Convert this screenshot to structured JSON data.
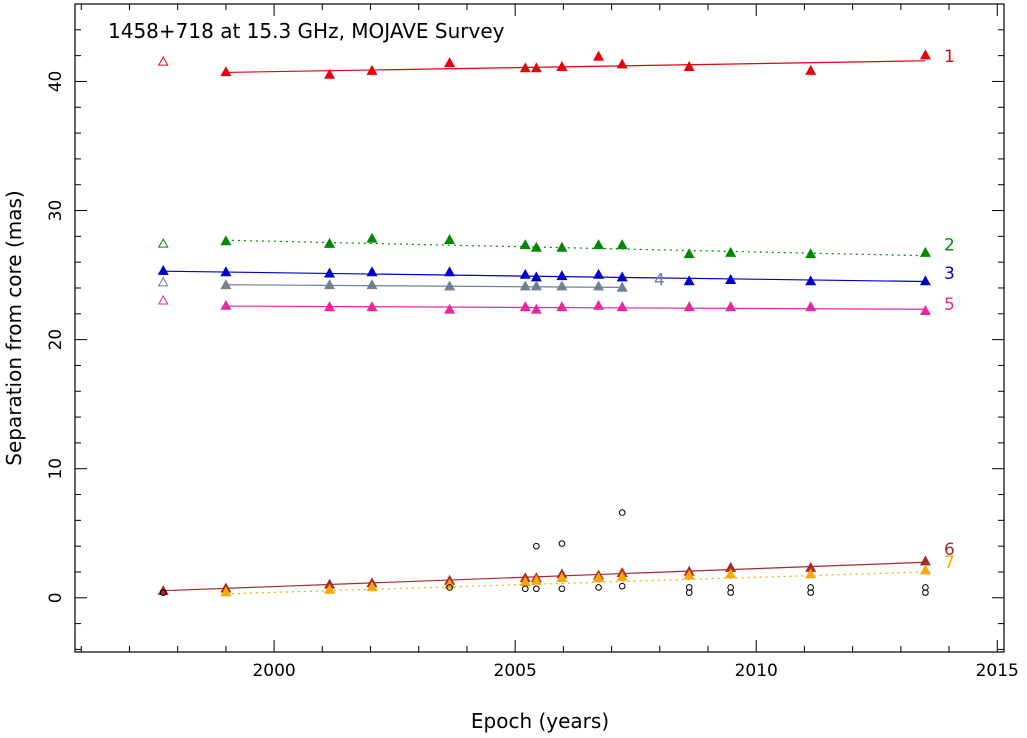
{
  "chart_data": {
    "type": "scatter",
    "title": "1458+718 at 15.3 GHz, MOJAVE Survey",
    "xlabel": "Epoch (years)",
    "ylabel": "Separation from core (mas)",
    "xlim": [
      1995.87,
      2015.14
    ],
    "ylim": [
      -4.2,
      46.0
    ],
    "x_ticks": [
      2000,
      2005,
      2010,
      2015
    ],
    "y_ticks": [
      0,
      10,
      20,
      30,
      40
    ],
    "grid": false,
    "series": [
      {
        "name": "1",
        "color": "#e8000b",
        "marker": "triangle",
        "fit_style": "solid",
        "points": [
          [
            1999.0,
            40.7
          ],
          [
            2001.15,
            40.5
          ],
          [
            2002.03,
            40.8
          ],
          [
            2003.64,
            41.4
          ],
          [
            2005.21,
            41.0
          ],
          [
            2005.44,
            41.0
          ],
          [
            2005.97,
            41.1
          ],
          [
            2006.73,
            41.9
          ],
          [
            2007.22,
            41.3
          ],
          [
            2008.61,
            41.1
          ],
          [
            2011.13,
            40.8
          ],
          [
            2013.51,
            42.0
          ]
        ],
        "fit": [
          [
            1999.0,
            40.7
          ],
          [
            2013.51,
            41.6
          ]
        ]
      },
      {
        "name": "2",
        "color": "#008800",
        "marker": "triangle",
        "fit_style": "dotted",
        "points": [
          [
            1999.0,
            27.6
          ],
          [
            2001.15,
            27.4
          ],
          [
            2002.03,
            27.8
          ],
          [
            2003.64,
            27.7
          ],
          [
            2005.21,
            27.3
          ],
          [
            2005.44,
            27.1
          ],
          [
            2005.97,
            27.1
          ],
          [
            2006.73,
            27.3
          ],
          [
            2007.22,
            27.3
          ],
          [
            2008.61,
            26.6
          ],
          [
            2009.47,
            26.7
          ],
          [
            2011.13,
            26.6
          ],
          [
            2013.51,
            26.7
          ]
        ],
        "fit": [
          [
            1999.0,
            27.7
          ],
          [
            2013.51,
            26.5
          ]
        ]
      },
      {
        "name": "3",
        "color": "#0000cc",
        "marker": "triangle",
        "fit_style": "solid",
        "points": [
          [
            1997.7,
            25.3
          ],
          [
            1999.0,
            25.2
          ],
          [
            2001.15,
            25.1
          ],
          [
            2002.03,
            25.2
          ],
          [
            2003.64,
            25.2
          ],
          [
            2005.21,
            25.0
          ],
          [
            2005.44,
            24.8
          ],
          [
            2005.97,
            24.9
          ],
          [
            2006.73,
            25.0
          ],
          [
            2007.22,
            24.8
          ],
          [
            2008.61,
            24.5
          ],
          [
            2009.47,
            24.6
          ],
          [
            2011.13,
            24.5
          ],
          [
            2013.51,
            24.5
          ]
        ],
        "fit": [
          [
            1997.7,
            25.3
          ],
          [
            2013.51,
            24.5
          ]
        ]
      },
      {
        "name": "4",
        "color": "#708090",
        "marker": "triangle",
        "fit_style": "solid",
        "points": [
          [
            1999.0,
            24.2
          ],
          [
            2001.15,
            24.2
          ],
          [
            2002.03,
            24.2
          ],
          [
            2003.64,
            24.1
          ],
          [
            2005.21,
            24.1
          ],
          [
            2005.44,
            24.1
          ],
          [
            2005.97,
            24.1
          ],
          [
            2006.73,
            24.1
          ],
          [
            2007.22,
            24.0
          ]
        ],
        "fit": [
          [
            1999.0,
            24.25
          ],
          [
            2007.22,
            24.05
          ]
        ]
      },
      {
        "name": "5",
        "color": "#e8289c",
        "marker": "triangle",
        "fit_style": "solid",
        "points": [
          [
            1999.0,
            22.6
          ],
          [
            2001.15,
            22.5
          ],
          [
            2002.03,
            22.5
          ],
          [
            2003.64,
            22.3
          ],
          [
            2005.21,
            22.5
          ],
          [
            2005.44,
            22.3
          ],
          [
            2005.97,
            22.5
          ],
          [
            2006.73,
            22.6
          ],
          [
            2007.22,
            22.5
          ],
          [
            2008.61,
            22.5
          ],
          [
            2009.47,
            22.5
          ],
          [
            2011.13,
            22.5
          ],
          [
            2013.51,
            22.2
          ]
        ],
        "fit": [
          [
            1999.0,
            22.6
          ],
          [
            2013.51,
            22.35
          ]
        ]
      },
      {
        "name": "6",
        "color": "#a52a2a",
        "marker": "triangle",
        "fit_style": "solid",
        "points": [
          [
            1997.7,
            0.5
          ],
          [
            1999.0,
            0.7
          ],
          [
            2001.15,
            1.0
          ],
          [
            2002.03,
            1.1
          ],
          [
            2003.64,
            1.3
          ],
          [
            2005.21,
            1.5
          ],
          [
            2005.44,
            1.5
          ],
          [
            2005.97,
            1.8
          ],
          [
            2006.73,
            1.7
          ],
          [
            2007.22,
            1.9
          ],
          [
            2008.61,
            2.0
          ],
          [
            2009.47,
            2.3
          ],
          [
            2011.13,
            2.3
          ],
          [
            2013.51,
            2.8
          ]
        ],
        "fit": [
          [
            1997.7,
            0.55
          ],
          [
            2013.51,
            2.75
          ]
        ]
      },
      {
        "name": "7",
        "color": "#ffa500",
        "marker": "triangle",
        "fit_style": "dotted",
        "points": [
          [
            1999.0,
            0.4
          ],
          [
            2001.15,
            0.6
          ],
          [
            2002.03,
            0.8
          ],
          [
            2003.64,
            1.0
          ],
          [
            2005.21,
            1.2
          ],
          [
            2005.44,
            1.3
          ],
          [
            2005.97,
            1.5
          ],
          [
            2006.73,
            1.5
          ],
          [
            2007.22,
            1.6
          ],
          [
            2008.61,
            1.7
          ],
          [
            2009.47,
            1.8
          ],
          [
            2011.13,
            1.8
          ],
          [
            2013.51,
            2.1
          ]
        ],
        "fit": [
          [
            1999.0,
            0.3
          ],
          [
            2013.51,
            2.0
          ]
        ]
      },
      {
        "name": "",
        "color": "#e8000b",
        "marker": "open-triangle",
        "fit_style": "none",
        "points": [
          [
            1997.7,
            41.5
          ]
        ]
      },
      {
        "name": "",
        "color": "#008800",
        "marker": "open-triangle",
        "fit_style": "none",
        "points": [
          [
            1997.7,
            27.4
          ]
        ]
      },
      {
        "name": "",
        "color": "#708090",
        "marker": "open-triangle",
        "fit_style": "none",
        "points": [
          [
            1997.7,
            24.4
          ]
        ]
      },
      {
        "name": "",
        "color": "#e8289c",
        "marker": "open-triangle",
        "fit_style": "none",
        "points": [
          [
            1997.7,
            23.0
          ]
        ]
      },
      {
        "name": "",
        "color": "#000000",
        "marker": "open-circle",
        "fit_style": "none",
        "points": [
          [
            1997.7,
            0.4
          ],
          [
            2003.64,
            0.8
          ],
          [
            2005.21,
            0.7
          ],
          [
            2005.44,
            0.7
          ],
          [
            2005.44,
            4.0
          ],
          [
            2005.97,
            0.7
          ],
          [
            2005.97,
            4.2
          ],
          [
            2006.73,
            0.8
          ],
          [
            2007.22,
            0.9
          ],
          [
            2007.22,
            6.6
          ],
          [
            2008.61,
            0.4
          ],
          [
            2008.61,
            0.8
          ],
          [
            2009.47,
            0.4
          ],
          [
            2009.47,
            0.8
          ],
          [
            2011.13,
            0.4
          ],
          [
            2011.13,
            0.8
          ],
          [
            2013.51,
            0.4
          ],
          [
            2013.51,
            0.8
          ]
        ]
      }
    ]
  }
}
